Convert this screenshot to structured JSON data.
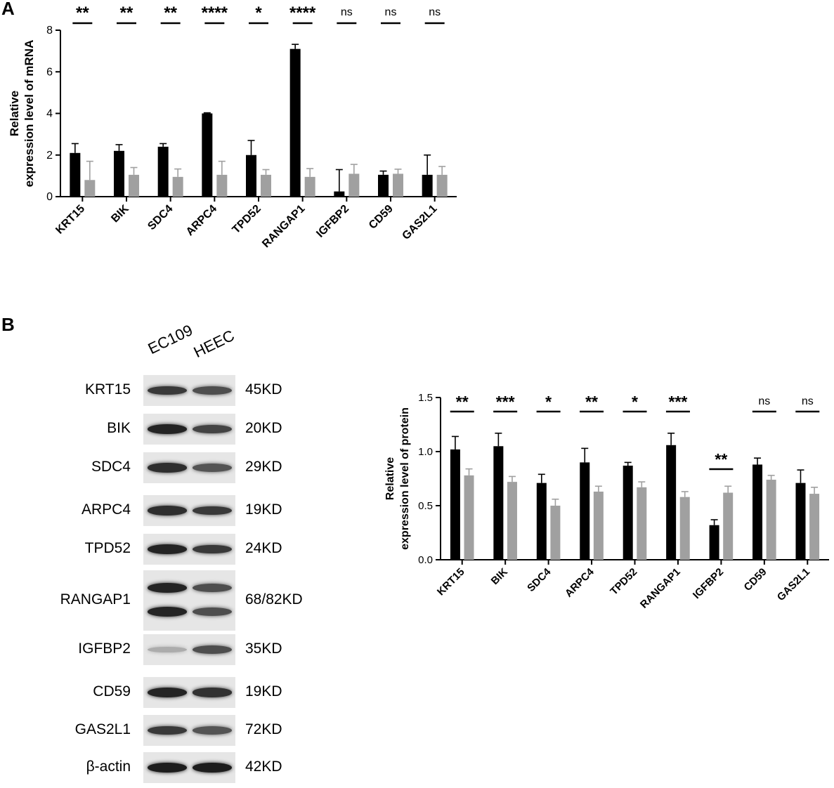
{
  "panels": {
    "a": "A",
    "b": "B"
  },
  "chart_data": [
    {
      "type": "bar",
      "categories": [
        "KRT15",
        "BIK",
        "SDC4",
        "ARPC4",
        "TPD52",
        "RANGAP1",
        "IGFBP2",
        "CD59",
        "GAS2L1"
      ],
      "series": [
        {
          "color": "#000000",
          "values": [
            2.1,
            2.2,
            2.4,
            4.0,
            2.0,
            7.1,
            0.25,
            1.05,
            1.05
          ],
          "errors": [
            0.45,
            0.3,
            0.15,
            0.03,
            0.7,
            0.22,
            1.05,
            0.18,
            0.95
          ]
        },
        {
          "color": "#a0a0a0",
          "values": [
            0.8,
            1.05,
            0.95,
            1.05,
            1.05,
            0.95,
            1.1,
            1.1,
            1.05
          ],
          "errors": [
            0.9,
            0.35,
            0.38,
            0.65,
            0.25,
            0.4,
            0.45,
            0.22,
            0.4
          ]
        }
      ],
      "significance": [
        "**",
        "**",
        "**",
        "****",
        "*",
        "****",
        "ns",
        "ns",
        "ns"
      ],
      "ylabel": [
        "Relative",
        "expression level of mRNA"
      ],
      "ylim": [
        0,
        8
      ],
      "yticks": [
        "0",
        "2",
        "4",
        "6",
        "8"
      ],
      "grid": false
    },
    {
      "type": "bar",
      "categories": [
        "KRT15",
        "BIK",
        "SDC4",
        "ARPC4",
        "TPD52",
        "RANGAP1",
        "IGFBP2",
        "CD59",
        "GAS2L1"
      ],
      "series": [
        {
          "color": "#000000",
          "values": [
            1.02,
            1.05,
            0.71,
            0.9,
            0.87,
            1.06,
            0.32,
            0.88,
            0.71
          ],
          "errors": [
            0.12,
            0.12,
            0.08,
            0.13,
            0.03,
            0.11,
            0.05,
            0.06,
            0.12
          ]
        },
        {
          "color": "#a0a0a0",
          "values": [
            0.78,
            0.72,
            0.5,
            0.63,
            0.67,
            0.58,
            0.62,
            0.74,
            0.61
          ],
          "errors": [
            0.06,
            0.05,
            0.06,
            0.05,
            0.05,
            0.05,
            0.06,
            0.04,
            0.06
          ]
        }
      ],
      "significance": [
        "**",
        "***",
        "*",
        "**",
        "*",
        "***",
        "**",
        "ns",
        "ns"
      ],
      "ylabel": [
        "Relative",
        "expression level of protein"
      ],
      "ylim": [
        0,
        1.5
      ],
      "yticks": [
        "0.0",
        "0.5",
        "1.0",
        "1.5"
      ],
      "grid": false
    }
  ],
  "western_blot": {
    "lanes": [
      "EC109",
      "HEEC"
    ],
    "rows": [
      {
        "protein": "KRT15",
        "size": "45KD",
        "ec109": 0.85,
        "heec": 0.75
      },
      {
        "protein": "BIK",
        "size": "20KD",
        "ec109": 0.95,
        "heec": 0.8
      },
      {
        "protein": "SDC4",
        "size": "29KD",
        "ec109": 0.9,
        "heec": 0.72
      },
      {
        "protein": "ARPC4",
        "size": "19KD",
        "ec109": 0.9,
        "heec": 0.85
      },
      {
        "protein": "TPD52",
        "size": "24KD",
        "ec109": 0.95,
        "heec": 0.85
      },
      {
        "protein": "RANGAP1",
        "size": "68/82KD",
        "ec109": 0.95,
        "heec": 0.75
      },
      {
        "protein": "IGFBP2",
        "size": "35KD",
        "ec109": 0.3,
        "heec": 0.75
      },
      {
        "protein": "CD59",
        "size": "19KD",
        "ec109": 0.95,
        "heec": 0.88
      },
      {
        "protein": "GAS2L1",
        "size": "72KD",
        "ec109": 0.85,
        "heec": 0.72
      },
      {
        "protein": "β-actin",
        "size": "42KD",
        "ec109": 0.98,
        "heec": 0.98
      }
    ]
  }
}
